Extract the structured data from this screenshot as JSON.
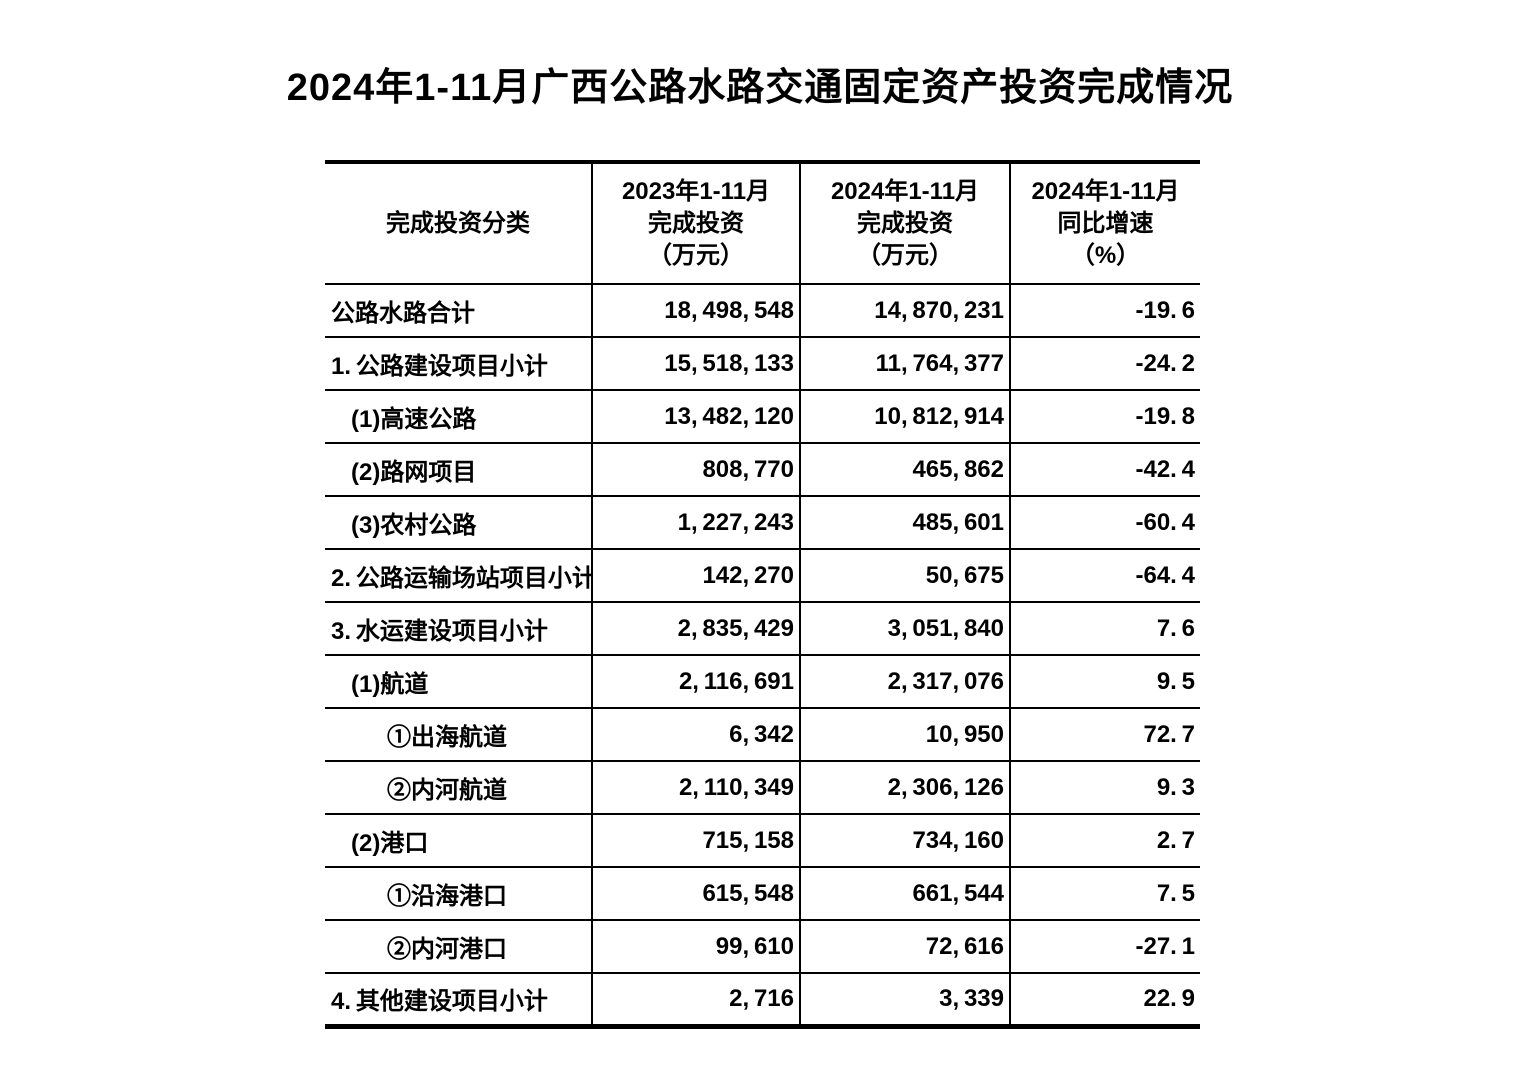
{
  "page": {
    "title": "2024年1-11月广西公路水路交通固定资产投资完成情况"
  },
  "colors": {
    "background": "#ffffff",
    "text": "#000000",
    "border": "#000000"
  },
  "table": {
    "header": {
      "category": "完成投资分类",
      "invest2023": {
        "l1": "2023年1-11月",
        "l2": "完成投资",
        "l3": "（万元）"
      },
      "invest2024": {
        "l1": "2024年1-11月",
        "l2": "完成投资",
        "l3": "（万元）"
      },
      "growth": {
        "l1": "2024年1-11月",
        "l2": "同比增速",
        "l3": "（%）"
      }
    },
    "rows": [
      {
        "label": "公路水路合计",
        "invest2023": "18,498,548",
        "invest2024": "14,870,231",
        "growth": "-19.6"
      },
      {
        "label": "1.公路建设项目小计",
        "invest2023": "15,518,133",
        "invest2024": "11,764,377",
        "growth": "-24.2"
      },
      {
        "label": "(1)高速公路",
        "invest2023": "13,482,120",
        "invest2024": "10,812,914",
        "growth": "-19.8"
      },
      {
        "label": "(2)路网项目",
        "invest2023": "808,770",
        "invest2024": "465,862",
        "growth": "-42.4"
      },
      {
        "label": "(3)农村公路",
        "invest2023": "1,227,243",
        "invest2024": "485,601",
        "growth": "-60.4"
      },
      {
        "label": "2.公路运输场站项目小计",
        "invest2023": "142,270",
        "invest2024": "50,675",
        "growth": "-64.4"
      },
      {
        "label": "3.水运建设项目小计",
        "invest2023": "2,835,429",
        "invest2024": "3,051,840",
        "growth": "7.6"
      },
      {
        "label": "(1)航道",
        "invest2023": "2,116,691",
        "invest2024": "2,317,076",
        "growth": "9.5"
      },
      {
        "label": "①出海航道",
        "invest2023": "6,342",
        "invest2024": "10,950",
        "growth": "72.7"
      },
      {
        "label": "②内河航道",
        "invest2023": "2,110,349",
        "invest2024": "2,306,126",
        "growth": "9.3"
      },
      {
        "label": "(2)港口",
        "invest2023": "715,158",
        "invest2024": "734,160",
        "growth": "2.7"
      },
      {
        "label": "①沿海港口",
        "invest2023": "615,548",
        "invest2024": "661,544",
        "growth": "7.5"
      },
      {
        "label": "②内河港口",
        "invest2023": "99,610",
        "invest2024": "72,616",
        "growth": "-27.1"
      },
      {
        "label": "4.其他建设项目小计",
        "invest2023": "2,716",
        "invest2024": "3,339",
        "growth": "22.9"
      }
    ]
  },
  "chart_data": {
    "type": "table",
    "title": "2024年1-11月广西公路水路交通固定资产投资完成情况",
    "columns": [
      "完成投资分类",
      "2023年1-11月完成投资（万元）",
      "2024年1-11月完成投资（万元）",
      "2024年1-11月同比增速（%）"
    ],
    "rows": [
      [
        "公路水路合计",
        18498548,
        14870231,
        -19.6
      ],
      [
        "1.公路建设项目小计",
        15518133,
        11764377,
        -24.2
      ],
      [
        "(1)高速公路",
        13482120,
        10812914,
        -19.8
      ],
      [
        "(2)路网项目",
        808770,
        465862,
        -42.4
      ],
      [
        "(3)农村公路",
        1227243,
        485601,
        -60.4
      ],
      [
        "2.公路运输场站项目小计",
        142270,
        50675,
        -64.4
      ],
      [
        "3.水运建设项目小计",
        2835429,
        3051840,
        7.6
      ],
      [
        "(1)航道",
        2116691,
        2317076,
        9.5
      ],
      [
        "①出海航道",
        6342,
        10950,
        72.7
      ],
      [
        "②内河航道",
        2110349,
        2306126,
        9.3
      ],
      [
        "(2)港口",
        715158,
        734160,
        2.7
      ],
      [
        "①沿海港口",
        615548,
        661544,
        7.5
      ],
      [
        "②内河港口",
        99610,
        72616,
        -27.1
      ],
      [
        "4.其他建设项目小计",
        2716,
        3339,
        22.9
      ]
    ]
  }
}
